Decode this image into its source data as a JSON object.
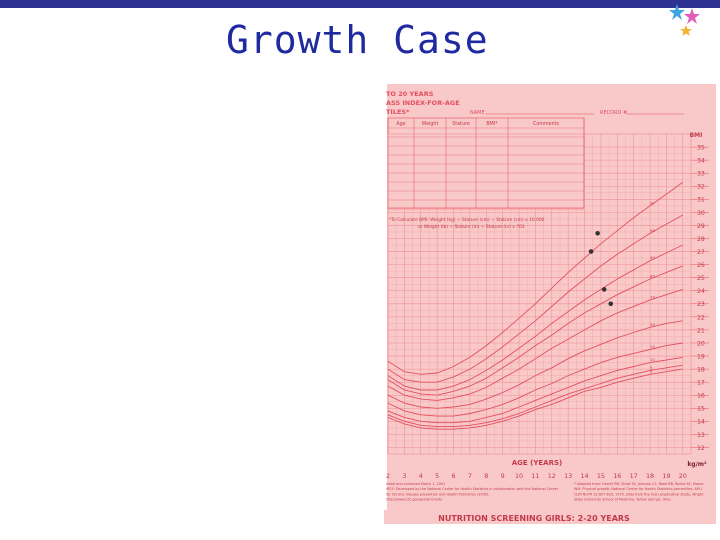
{
  "slide": {
    "title": "Growth Case",
    "colors": {
      "topbar": "#2e3192",
      "title": "#1f2aa0",
      "chart_bg": "#f9c9c9",
      "grid": "#ee8e96",
      "ink": "#e2505f"
    },
    "decoration_icon": "stars-icon"
  },
  "chart_data": {
    "type": "scatter",
    "header": {
      "line1": "TO 20 YEARS",
      "line2": "ASS INDEX-FOR-AGE",
      "line3": "TILES*",
      "name_label": "NAME",
      "record_label": "RECORD #"
    },
    "table_headers": [
      "Age",
      "Weight",
      "Stature",
      "BMI*",
      "Comments"
    ],
    "formula": {
      "line1": "*To Calculate BMI: Weight (kg) ÷ Stature (cm) ÷ Stature (cm) x 10,000",
      "line2": "or Weight (lb) ÷ Stature (in) ÷ Stature (in) x 703"
    },
    "xlabel": "AGE (YEARS)",
    "ylabel": "BMI",
    "unit_label": "kg/m²",
    "x_ticks": [
      2,
      3,
      4,
      5,
      6,
      7,
      8,
      9,
      10,
      11,
      12,
      13,
      14,
      15,
      16,
      17,
      18,
      19,
      20
    ],
    "y_ticks": [
      12,
      13,
      14,
      15,
      16,
      17,
      18,
      19,
      20,
      21,
      22,
      23,
      24,
      25,
      26,
      27,
      28,
      29,
      30,
      31,
      32,
      33,
      34,
      35
    ],
    "xlim": [
      2,
      20.5
    ],
    "ylim": [
      11.5,
      36
    ],
    "percentile_curves": [
      {
        "name": "97",
        "points": [
          [
            2,
            18.6
          ],
          [
            3,
            17.8
          ],
          [
            4,
            17.6
          ],
          [
            5,
            17.7
          ],
          [
            6,
            18.2
          ],
          [
            7,
            18.9
          ],
          [
            8,
            19.8
          ],
          [
            9,
            20.8
          ],
          [
            10,
            21.9
          ],
          [
            11,
            23.0
          ],
          [
            12,
            24.2
          ],
          [
            13,
            25.4
          ],
          [
            14,
            26.5
          ],
          [
            15,
            27.6
          ],
          [
            16,
            28.6
          ],
          [
            17,
            29.6
          ],
          [
            18,
            30.5
          ],
          [
            19,
            31.4
          ],
          [
            20,
            32.3
          ]
        ]
      },
      {
        "name": "95",
        "points": [
          [
            2,
            18.0
          ],
          [
            3,
            17.2
          ],
          [
            4,
            17.0
          ],
          [
            5,
            17.0
          ],
          [
            6,
            17.4
          ],
          [
            7,
            18.0
          ],
          [
            8,
            18.8
          ],
          [
            9,
            19.7
          ],
          [
            10,
            20.7
          ],
          [
            11,
            21.7
          ],
          [
            12,
            22.8
          ],
          [
            13,
            23.9
          ],
          [
            14,
            24.9
          ],
          [
            15,
            25.9
          ],
          [
            16,
            26.8
          ],
          [
            17,
            27.6
          ],
          [
            18,
            28.4
          ],
          [
            19,
            29.1
          ],
          [
            20,
            29.8
          ]
        ]
      },
      {
        "name": "90",
        "points": [
          [
            2,
            17.5
          ],
          [
            3,
            16.7
          ],
          [
            4,
            16.4
          ],
          [
            5,
            16.4
          ],
          [
            6,
            16.7
          ],
          [
            7,
            17.2
          ],
          [
            8,
            17.9
          ],
          [
            9,
            18.7
          ],
          [
            10,
            19.6
          ],
          [
            11,
            20.5
          ],
          [
            12,
            21.5
          ],
          [
            13,
            22.4
          ],
          [
            14,
            23.3
          ],
          [
            15,
            24.1
          ],
          [
            16,
            24.9
          ],
          [
            17,
            25.6
          ],
          [
            18,
            26.3
          ],
          [
            19,
            26.9
          ],
          [
            20,
            27.5
          ]
        ]
      },
      {
        "name": "85",
        "points": [
          [
            2,
            17.2
          ],
          [
            3,
            16.4
          ],
          [
            4,
            16.1
          ],
          [
            5,
            16.0
          ],
          [
            6,
            16.3
          ],
          [
            7,
            16.7
          ],
          [
            8,
            17.3
          ],
          [
            9,
            18.1
          ],
          [
            10,
            18.9
          ],
          [
            11,
            19.8
          ],
          [
            12,
            20.6
          ],
          [
            13,
            21.5
          ],
          [
            14,
            22.3
          ],
          [
            15,
            23.0
          ],
          [
            16,
            23.7
          ],
          [
            17,
            24.3
          ],
          [
            18,
            24.9
          ],
          [
            19,
            25.4
          ],
          [
            20,
            25.9
          ]
        ]
      },
      {
        "name": "75",
        "points": [
          [
            2,
            16.7
          ],
          [
            3,
            16.0
          ],
          [
            4,
            15.7
          ],
          [
            5,
            15.6
          ],
          [
            6,
            15.8
          ],
          [
            7,
            16.1
          ],
          [
            8,
            16.6
          ],
          [
            9,
            17.3
          ],
          [
            10,
            18.0
          ],
          [
            11,
            18.8
          ],
          [
            12,
            19.6
          ],
          [
            13,
            20.3
          ],
          [
            14,
            21.0
          ],
          [
            15,
            21.7
          ],
          [
            16,
            22.3
          ],
          [
            17,
            22.8
          ],
          [
            18,
            23.3
          ],
          [
            19,
            23.7
          ],
          [
            20,
            24.1
          ]
        ]
      },
      {
        "name": "50",
        "points": [
          [
            2,
            16.0
          ],
          [
            3,
            15.4
          ],
          [
            4,
            15.1
          ],
          [
            5,
            15.0
          ],
          [
            6,
            15.1
          ],
          [
            7,
            15.3
          ],
          [
            8,
            15.7
          ],
          [
            9,
            16.2
          ],
          [
            10,
            16.8
          ],
          [
            11,
            17.5
          ],
          [
            12,
            18.1
          ],
          [
            13,
            18.8
          ],
          [
            14,
            19.4
          ],
          [
            15,
            19.9
          ],
          [
            16,
            20.4
          ],
          [
            17,
            20.8
          ],
          [
            18,
            21.2
          ],
          [
            19,
            21.5
          ],
          [
            20,
            21.7
          ]
        ]
      },
      {
        "name": "25",
        "points": [
          [
            2,
            15.4
          ],
          [
            3,
            14.8
          ],
          [
            4,
            14.5
          ],
          [
            5,
            14.4
          ],
          [
            6,
            14.4
          ],
          [
            7,
            14.6
          ],
          [
            8,
            14.9
          ],
          [
            9,
            15.3
          ],
          [
            10,
            15.8
          ],
          [
            11,
            16.4
          ],
          [
            12,
            16.9
          ],
          [
            13,
            17.5
          ],
          [
            14,
            18.0
          ],
          [
            15,
            18.5
          ],
          [
            16,
            18.9
          ],
          [
            17,
            19.2
          ],
          [
            18,
            19.5
          ],
          [
            19,
            19.8
          ],
          [
            20,
            20.0
          ]
        ]
      },
      {
        "name": "10",
        "points": [
          [
            2,
            14.8
          ],
          [
            3,
            14.3
          ],
          [
            4,
            14.0
          ],
          [
            5,
            13.9
          ],
          [
            6,
            13.9
          ],
          [
            7,
            14.0
          ],
          [
            8,
            14.3
          ],
          [
            9,
            14.6
          ],
          [
            10,
            15.1
          ],
          [
            11,
            15.6
          ],
          [
            12,
            16.1
          ],
          [
            13,
            16.6
          ],
          [
            14,
            17.1
          ],
          [
            15,
            17.5
          ],
          [
            16,
            17.9
          ],
          [
            17,
            18.2
          ],
          [
            18,
            18.5
          ],
          [
            19,
            18.7
          ],
          [
            20,
            18.9
          ]
        ]
      },
      {
        "name": "5",
        "points": [
          [
            2,
            14.5
          ],
          [
            3,
            14.0
          ],
          [
            4,
            13.7
          ],
          [
            5,
            13.6
          ],
          [
            6,
            13.6
          ],
          [
            7,
            13.7
          ],
          [
            8,
            13.9
          ],
          [
            9,
            14.2
          ],
          [
            10,
            14.6
          ],
          [
            11,
            15.1
          ],
          [
            12,
            15.6
          ],
          [
            13,
            16.1
          ],
          [
            14,
            16.5
          ],
          [
            15,
            16.9
          ],
          [
            16,
            17.3
          ],
          [
            17,
            17.6
          ],
          [
            18,
            17.9
          ],
          [
            19,
            18.1
          ],
          [
            20,
            18.3
          ]
        ]
      },
      {
        "name": "3",
        "points": [
          [
            2,
            14.3
          ],
          [
            3,
            13.8
          ],
          [
            4,
            13.5
          ],
          [
            5,
            13.4
          ],
          [
            6,
            13.4
          ],
          [
            7,
            13.5
          ],
          [
            8,
            13.7
          ],
          [
            9,
            14.0
          ],
          [
            10,
            14.4
          ],
          [
            11,
            14.9
          ],
          [
            12,
            15.3
          ],
          [
            13,
            15.8
          ],
          [
            14,
            16.3
          ],
          [
            15,
            16.6
          ],
          [
            16,
            17.0
          ],
          [
            17,
            17.3
          ],
          [
            18,
            17.6
          ],
          [
            19,
            17.8
          ],
          [
            20,
            18.0
          ]
        ]
      }
    ],
    "data_points": [
      {
        "x": 14.8,
        "y": 28.4
      },
      {
        "x": 14.4,
        "y": 27.0
      },
      {
        "x": 15.2,
        "y": 24.1
      },
      {
        "x": 15.6,
        "y": 23.0
      }
    ],
    "footer": {
      "left": [
        "ished and corrected March 1, 2001",
        "IRCE: Developed by the National Center for Health Statistics in collaboration with the National Center",
        "for Chronic disease prevention and Health Promotion (2000).",
        "http://www.cdc.gov/growthcharts"
      ],
      "right": [
        "* Adapted from: Hamill PW, Drizd TA, Johnson CL, Reed RB, Roche AF, Moore",
        "WM. Physical growth: National Center for Health Statistics percentiles. AM J",
        "CLIN NUTR 32:607-629, 1979. Data from the Fels Longitudinal Study, Wright",
        "State University School of Medicine, Yellow Springs, Ohio."
      ],
      "banner": "NUTRITION SCREENING GIRLS: 2-20 YEARS"
    }
  }
}
